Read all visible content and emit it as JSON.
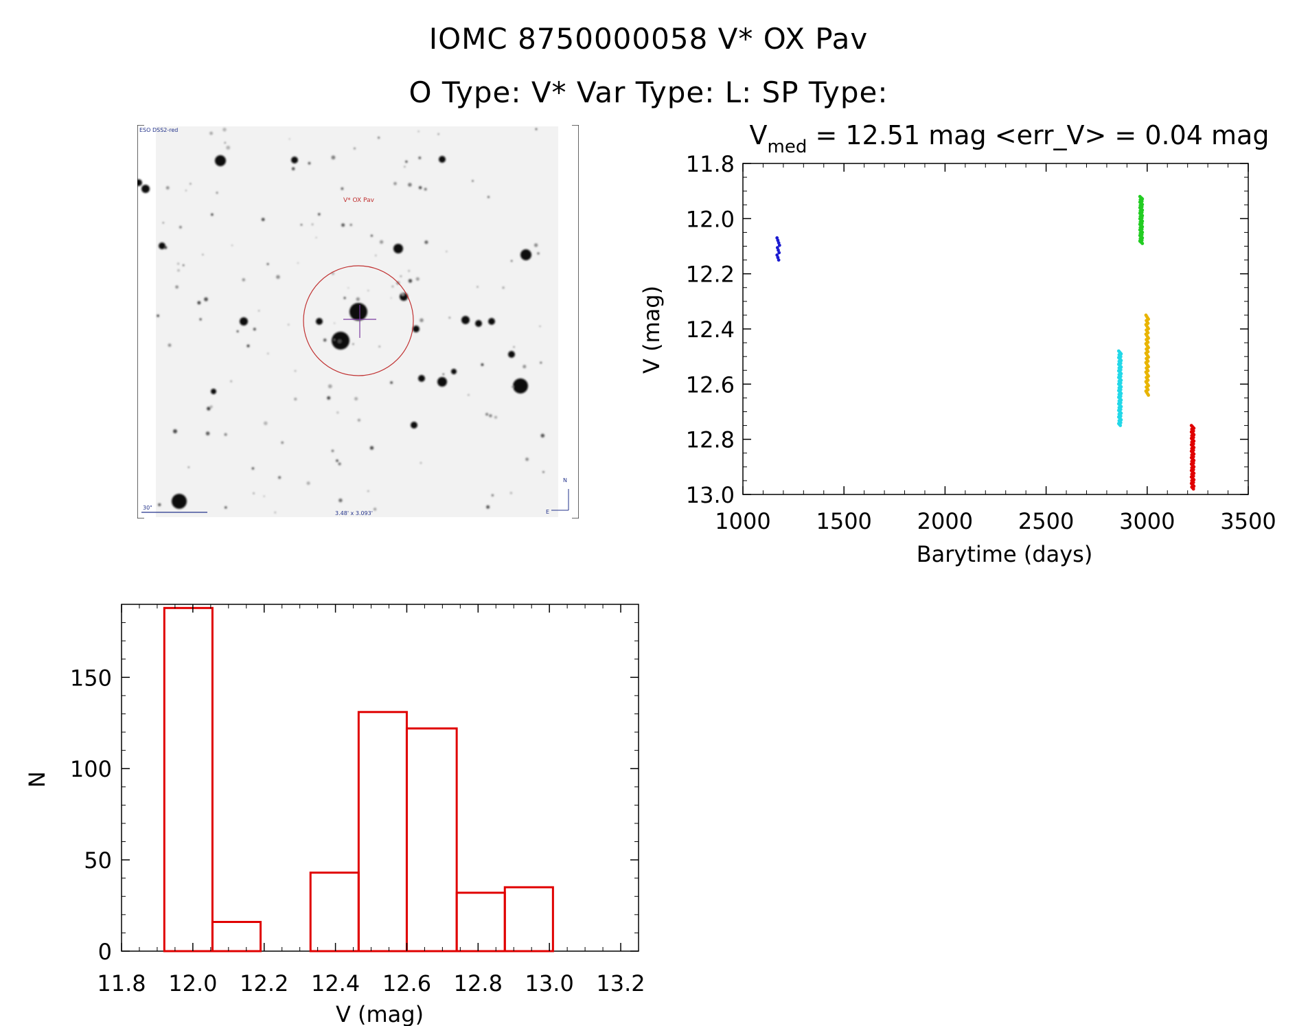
{
  "header": {
    "title_line1": "IOMC 8750000058    V* OX Pav",
    "title_line2": "O Type: V*   Var Type: L:   SP Type:"
  },
  "sky_image": {
    "survey_label": "ESO DSS2-red",
    "target_label": "V* OX Pav",
    "scale_label": "30\"",
    "size_label": "3.48' x 3.093'",
    "north_label": "N",
    "east_label": "E"
  },
  "chart_data": [
    {
      "type": "scatter",
      "title_prefix": "V",
      "title_subscript": "med",
      "title_suffix": " = 12.51 mag <err_V> = 0.04 mag",
      "xlabel": "Barytime (days)",
      "ylabel": "V (mag)",
      "xlim": [
        1000,
        3500
      ],
      "ylim": [
        13.0,
        11.8
      ],
      "y_inverted": true,
      "x_ticks": [
        1000,
        1500,
        2000,
        2500,
        3000,
        3500
      ],
      "y_ticks": [
        "11.8",
        "12.0",
        "12.2",
        "12.4",
        "12.6",
        "12.8",
        "13.0"
      ],
      "series": [
        {
          "color": "#1a1ad0",
          "x": 1175,
          "y_min": 12.07,
          "y_max": 12.15,
          "n": 10
        },
        {
          "color": "#22cc22",
          "x": 2970,
          "y_min": 11.92,
          "y_max": 12.09,
          "n": 60
        },
        {
          "color": "#22d8e8",
          "x": 2865,
          "y_min": 12.48,
          "y_max": 12.75,
          "n": 80
        },
        {
          "color": "#e8b400",
          "x": 3000,
          "y_min": 12.35,
          "y_max": 12.64,
          "n": 60
        },
        {
          "color": "#e00000",
          "x": 3225,
          "y_min": 12.75,
          "y_max": 12.98,
          "n": 70
        }
      ]
    },
    {
      "type": "bar",
      "xlabel": "V (mag)",
      "ylabel": "N",
      "xlim": [
        11.8,
        13.25
      ],
      "ylim": [
        0,
        190
      ],
      "x_ticks": [
        "11.8",
        "12.0",
        "12.2",
        "12.4",
        "12.6",
        "12.8",
        "13.0",
        "13.2"
      ],
      "y_ticks": [
        "0",
        "50",
        "100",
        "150"
      ],
      "bar_color": "#e00000",
      "bins": [
        {
          "lo": 11.92,
          "hi": 12.055,
          "n": 188
        },
        {
          "lo": 12.055,
          "hi": 12.19,
          "n": 16
        },
        {
          "lo": 12.19,
          "hi": 12.33,
          "n": 0
        },
        {
          "lo": 12.33,
          "hi": 12.465,
          "n": 43
        },
        {
          "lo": 12.465,
          "hi": 12.6,
          "n": 131
        },
        {
          "lo": 12.6,
          "hi": 12.74,
          "n": 122
        },
        {
          "lo": 12.74,
          "hi": 12.875,
          "n": 32
        },
        {
          "lo": 12.875,
          "hi": 13.01,
          "n": 35
        }
      ]
    }
  ]
}
